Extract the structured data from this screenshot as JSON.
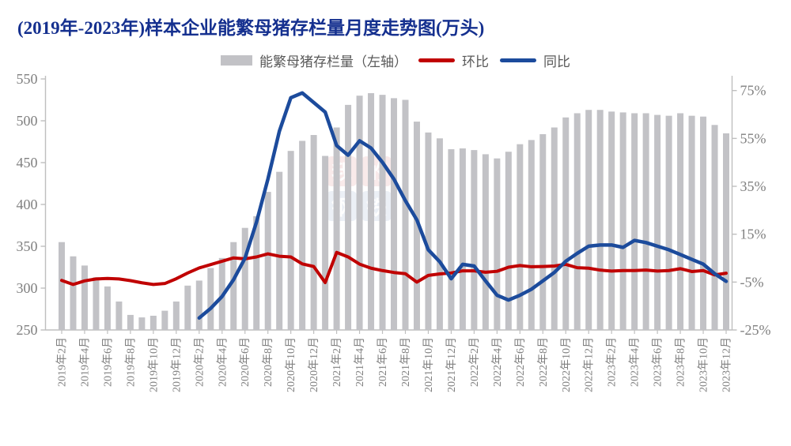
{
  "title": "(2019年-2023年)样本企业能繁母猪存栏量月度走势图(万头)",
  "legend": {
    "bars": "能繁母猪存栏量（左轴）",
    "mom": "环比",
    "yoy": "同比"
  },
  "watermark": {
    "tiles": [
      "我",
      "的",
      "钢",
      "铁"
    ],
    "text": "Mysteel.com"
  },
  "colors": {
    "title": "#15308f",
    "bar": "#c2c2c6",
    "mom": "#c00000",
    "yoy": "#1c4b9c",
    "axis_text": "#808080",
    "legend_text": "#595959",
    "spine": "#bfbfbf"
  },
  "axes": {
    "left_tick_labels": [
      "550",
      "500",
      "450",
      "400",
      "350",
      "300",
      "250"
    ],
    "right_tick_labels": [
      "75%",
      "55%",
      "35%",
      "15%",
      "-5%",
      "-25%"
    ],
    "left_range": [
      250,
      550
    ],
    "right_range": [
      -25,
      75
    ]
  },
  "chart_data": {
    "type": "bar",
    "title": "(2019年-2023年)样本企业能繁母猪存栏量月度走势图(万头)",
    "xlabel": "",
    "ylabel_left": "万头",
    "ylabel_right": "%",
    "left_ylim": [
      250,
      550
    ],
    "right_ylim": [
      -25,
      75
    ],
    "grid": false,
    "legend_position": "top",
    "x": [
      "2019年2月",
      "2019年3月",
      "2019年4月",
      "2019年5月",
      "2019年6月",
      "2019年7月",
      "2019年8月",
      "2019年9月",
      "2019年10月",
      "2019年11月",
      "2019年12月",
      "2020年1月",
      "2020年2月",
      "2020年3月",
      "2020年4月",
      "2020年5月",
      "2020年6月",
      "2020年7月",
      "2020年8月",
      "2020年9月",
      "2020年10月",
      "2020年11月",
      "2020年12月",
      "2021年1月",
      "2021年2月",
      "2021年3月",
      "2021年4月",
      "2021年5月",
      "2021年6月",
      "2021年7月",
      "2021年8月",
      "2021年9月",
      "2021年10月",
      "2021年11月",
      "2021年12月",
      "2022年1月",
      "2022年2月",
      "2022年3月",
      "2022年4月",
      "2022年5月",
      "2022年6月",
      "2022年7月",
      "2022年8月",
      "2022年9月",
      "2022年10月",
      "2022年11月",
      "2022年12月",
      "2023年1月",
      "2023年2月",
      "2023年3月",
      "2023年4月",
      "2023年5月",
      "2023年6月",
      "2023年7月",
      "2023年8月",
      "2023年9月",
      "2023年10月",
      "2023年11月",
      "2023年12月"
    ],
    "x_tick_labels": [
      "2019年2月",
      "2019年4月",
      "2019年6月",
      "2019年8月",
      "2019年10月",
      "2019年12月",
      "2020年2月",
      "2020年4月",
      "2020年6月",
      "2020年8月",
      "2020年10月",
      "2020年12月",
      "2021年2月",
      "2021年4月",
      "2021年6月",
      "2021年8月",
      "2021年10月",
      "2021年12月",
      "2022年2月",
      "2022年4月",
      "2022年6月",
      "2022年8月",
      "2022年10月",
      "2022年12月",
      "2023年2月",
      "2023年4月",
      "2023年6月",
      "2023年8月",
      "2023年10月",
      "2023年12月"
    ],
    "series": [
      {
        "name": "能繁母猪存栏量（左轴）",
        "type": "bar",
        "axis": "left",
        "unit": "万头",
        "values": [
          355,
          338,
          327,
          313,
          302,
          284,
          268,
          265,
          267,
          273,
          284,
          303,
          309,
          324,
          336,
          355,
          372,
          386,
          415,
          439,
          464,
          476,
          483,
          458,
          492,
          519,
          530,
          533,
          531,
          527,
          525,
          499,
          486,
          479,
          466,
          467,
          465,
          460,
          455,
          463,
          472,
          477,
          484,
          492,
          504,
          509,
          513,
          513,
          511,
          510,
          509,
          509,
          507,
          506,
          509,
          506,
          505,
          495,
          485
        ]
      },
      {
        "name": "环比",
        "type": "line",
        "axis": "right",
        "unit": "%",
        "values": [
          -4.3,
          -6.0,
          -4.5,
          -3.7,
          -3.5,
          -3.7,
          -4.4,
          -5.3,
          -6.0,
          -5.6,
          -3.6,
          -1.2,
          0.9,
          2.3,
          3.7,
          5.1,
          4.7,
          5.5,
          6.8,
          5.8,
          5.5,
          2.6,
          1.5,
          -5.2,
          7.4,
          5.5,
          2.5,
          0.8,
          -0.2,
          -1.0,
          -1.5,
          -5.0,
          -2.2,
          -1.6,
          -1.2,
          -0.3,
          -0.3,
          -0.9,
          -0.5,
          1.2,
          1.9,
          1.4,
          1.5,
          1.7,
          2.4,
          1.0,
          0.8,
          0.0,
          -0.4,
          -0.2,
          -0.2,
          0.0,
          -0.4,
          -0.2,
          0.6,
          -0.6,
          -0.2,
          -2.0,
          -1.3
        ]
      },
      {
        "name": "同比",
        "type": "line",
        "axis": "right",
        "unit": "%",
        "values": [
          null,
          null,
          null,
          null,
          null,
          null,
          null,
          null,
          null,
          null,
          null,
          null,
          -20,
          -16,
          -11,
          -4,
          5,
          20,
          38,
          58,
          72,
          74,
          70,
          66,
          52,
          48,
          54,
          51,
          45,
          38,
          29,
          21,
          8.5,
          3.5,
          -3.6,
          2.4,
          1.7,
          -4.5,
          -10.5,
          -12.5,
          -10.5,
          -8,
          -4.5,
          -1,
          3.7,
          7,
          10,
          10.5,
          10.5,
          9.5,
          12.4,
          11.5,
          10,
          8.5,
          6.5,
          4.5,
          2.5,
          -1.5,
          -4.7
        ]
      }
    ]
  }
}
